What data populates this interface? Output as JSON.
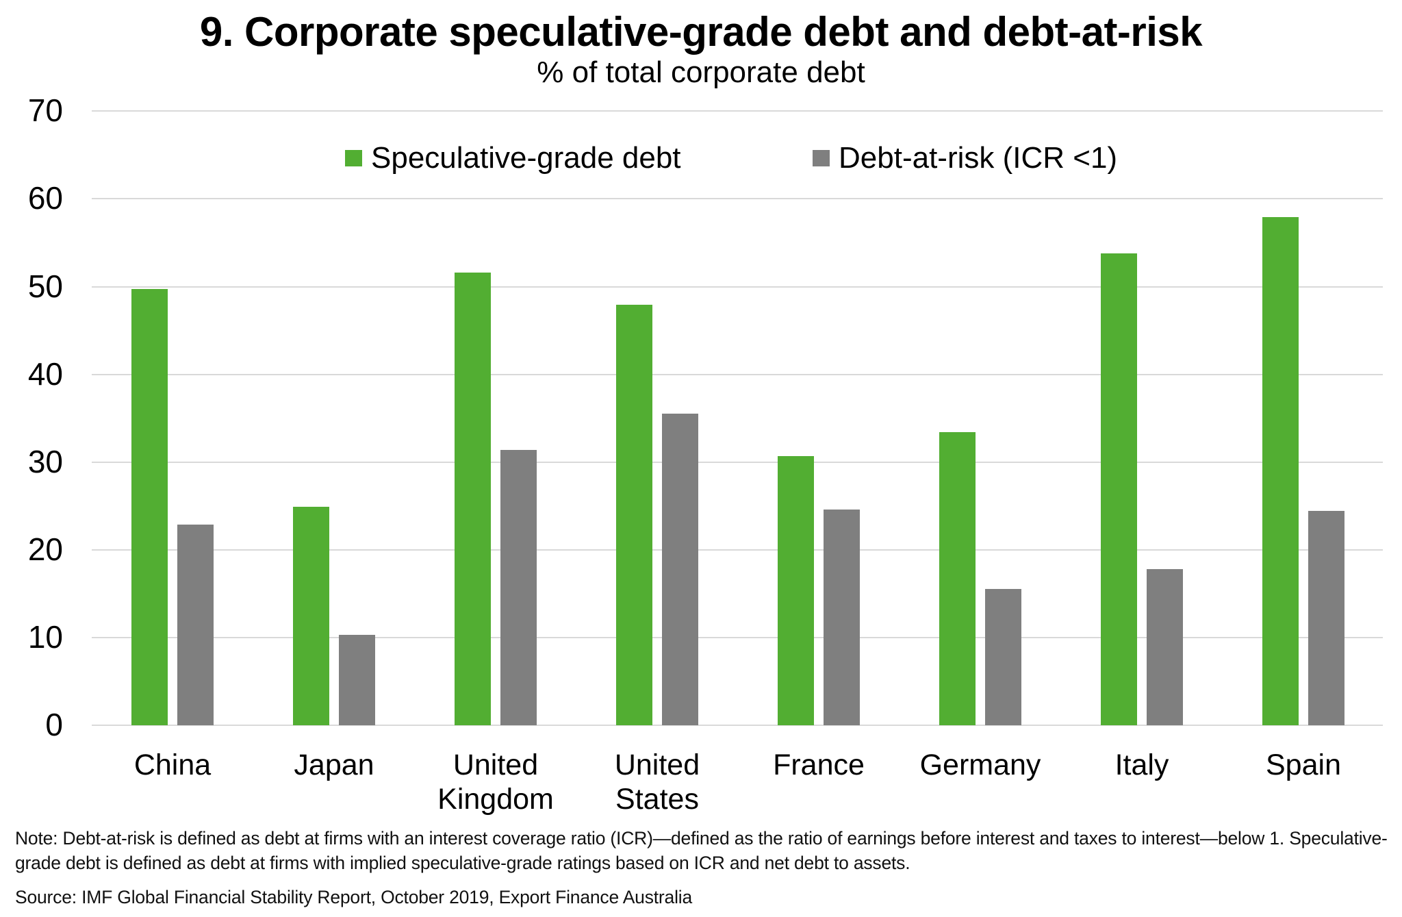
{
  "title": "9. Corporate speculative-grade debt and debt-at-risk",
  "subtitle": "% of total corporate debt",
  "legend": [
    {
      "label": "Speculative-grade debt",
      "color": "#52ae32"
    },
    {
      "label": "Debt-at-risk (ICR <1)",
      "color": "#7f7f7f"
    }
  ],
  "note": "Note: Debt-at-risk is defined as debt at firms with an interest coverage ratio (ICR)—defined  as the ratio of earnings before interest and taxes to interest—below 1. Speculative-grade debt is defined as debt at firms with implied speculative-grade ratings based on ICR and net debt to assets.",
  "source": "Source: IMF Global Financial Stability Report, October 2019, Export Finance Australia",
  "chart_data": {
    "type": "bar",
    "title": "9. Corporate speculative-grade debt and debt-at-risk",
    "subtitle": "% of total corporate debt",
    "xlabel": "",
    "ylabel": "% of total corporate debt",
    "categories": [
      "China",
      "Japan",
      "United Kingdom",
      "United States",
      "France",
      "Germany",
      "Italy",
      "Spain"
    ],
    "category_label_lines": [
      [
        "China"
      ],
      [
        "Japan"
      ],
      [
        "United",
        "Kingdom"
      ],
      [
        "United",
        "States"
      ],
      [
        "France"
      ],
      [
        "Germany"
      ],
      [
        "Italy"
      ],
      [
        "Spain"
      ]
    ],
    "series": [
      {
        "name": "Speculative-grade debt",
        "color": "#52ae32",
        "values": [
          49.7,
          24.9,
          51.6,
          47.9,
          30.7,
          33.4,
          53.8,
          57.9
        ]
      },
      {
        "name": "Debt-at-risk (ICR <1)",
        "color": "#7f7f7f",
        "values": [
          22.9,
          10.3,
          31.4,
          35.5,
          24.6,
          15.5,
          17.8,
          24.4
        ]
      }
    ],
    "ylim": [
      0,
      70
    ],
    "yticks": [
      0,
      10,
      20,
      30,
      40,
      50,
      60,
      70
    ],
    "grid": true,
    "legend_position": "top-inside"
  }
}
